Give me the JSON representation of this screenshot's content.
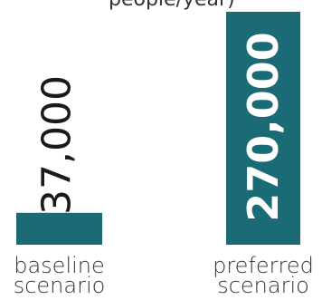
{
  "top_text_fragment": "people/year)",
  "chart_data": {
    "type": "bar",
    "categories": [
      "baseline scenario",
      "preferred scenario"
    ],
    "category_lines": [
      [
        "baseline",
        "scenario"
      ],
      [
        "preferred",
        "scenario"
      ]
    ],
    "values": [
      37000,
      270000
    ],
    "value_labels": [
      "37,000",
      "270,000"
    ],
    "ylim": [
      0,
      270000
    ],
    "bar_color": "#1a6b76",
    "baseline_label_color": "#1a1a1a",
    "preferred_label_color": "#ffffff",
    "category_label_color": "#333333"
  }
}
